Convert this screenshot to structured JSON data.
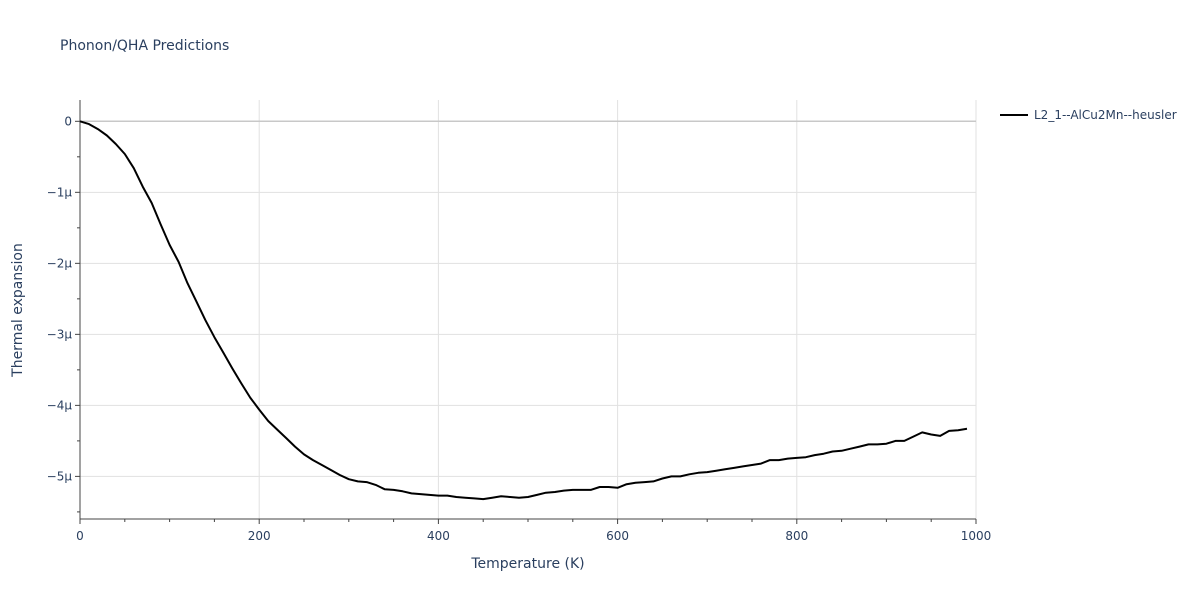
{
  "chart_data": {
    "type": "line",
    "title": "Phonon/QHA Predictions",
    "xlabel": "Temperature (K)",
    "ylabel": "Thermal expansion",
    "xlim": [
      0,
      1000
    ],
    "ylim": [
      -5.6,
      0.3
    ],
    "y_unit_scale": "micro (µ = 1e-6)",
    "x_ticks": [
      0,
      200,
      400,
      600,
      800,
      1000
    ],
    "x_tick_labels": [
      "0",
      "200",
      "400",
      "600",
      "800",
      "1000"
    ],
    "y_ticks": [
      0,
      -1,
      -2,
      -3,
      -4,
      -5
    ],
    "y_tick_labels": [
      "0",
      "−1µ",
      "−2µ",
      "−3µ",
      "−4µ",
      "−5µ"
    ],
    "grid": true,
    "legend_position": "top-right outside",
    "series": [
      {
        "name": "L2_1--AlCu2Mn--heusler",
        "color": "#000000",
        "x": [
          0,
          10,
          20,
          30,
          40,
          50,
          60,
          70,
          80,
          90,
          100,
          110,
          120,
          130,
          140,
          150,
          160,
          170,
          180,
          190,
          200,
          210,
          220,
          230,
          240,
          250,
          260,
          270,
          280,
          290,
          300,
          310,
          320,
          330,
          340,
          350,
          360,
          370,
          380,
          390,
          400,
          410,
          420,
          430,
          440,
          450,
          460,
          470,
          480,
          490,
          500,
          510,
          520,
          530,
          540,
          550,
          560,
          570,
          580,
          590,
          600,
          610,
          620,
          630,
          640,
          650,
          660,
          670,
          680,
          690,
          700,
          710,
          720,
          730,
          740,
          750,
          760,
          770,
          780,
          790,
          800,
          810,
          820,
          830,
          840,
          850,
          860,
          870,
          880,
          890,
          900,
          910,
          920,
          930,
          940,
          950,
          960,
          970,
          980,
          990
        ],
        "y": [
          0,
          -0.04,
          -0.11,
          -0.2,
          -0.32,
          -0.46,
          -0.66,
          -0.92,
          -1.15,
          -1.45,
          -1.74,
          -1.98,
          -2.28,
          -2.54,
          -2.8,
          -3.04,
          -3.26,
          -3.48,
          -3.69,
          -3.89,
          -4.06,
          -4.22,
          -4.34,
          -4.46,
          -4.58,
          -4.69,
          -4.77,
          -4.84,
          -4.91,
          -4.98,
          -5.04,
          -5.07,
          -5.08,
          -5.12,
          -5.18,
          -5.19,
          -5.21,
          -5.24,
          -5.25,
          -5.26,
          -5.27,
          -5.27,
          -5.29,
          -5.3,
          -5.31,
          -5.32,
          -5.3,
          -5.28,
          -5.29,
          -5.3,
          -5.29,
          -5.26,
          -5.23,
          -5.22,
          -5.2,
          -5.19,
          -5.19,
          -5.19,
          -5.15,
          -5.15,
          -5.16,
          -5.11,
          -5.09,
          -5.08,
          -5.07,
          -5.03,
          -5.0,
          -5.0,
          -4.97,
          -4.95,
          -4.94,
          -4.92,
          -4.9,
          -4.88,
          -4.86,
          -4.84,
          -4.82,
          -4.77,
          -4.77,
          -4.75,
          -4.74,
          -4.73,
          -4.7,
          -4.68,
          -4.65,
          -4.64,
          -4.61,
          -4.58,
          -4.55,
          -4.55,
          -4.54,
          -4.5,
          -4.5,
          -4.44,
          -4.38,
          -4.41,
          -4.43,
          -4.36,
          -4.35,
          -4.33
        ]
      }
    ]
  }
}
